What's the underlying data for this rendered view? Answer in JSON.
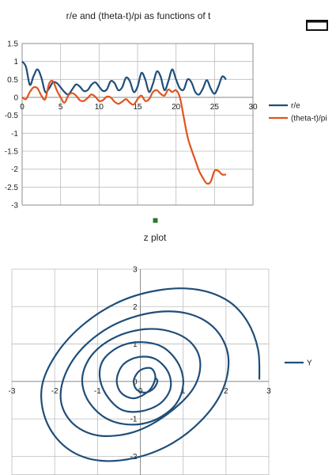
{
  "chart_data": [
    {
      "type": "line",
      "title": "r/e and (theta-t)/pi as functions of t",
      "xlim": [
        0,
        30
      ],
      "ylim": [
        -3,
        1.5
      ],
      "x_ticks": [
        0,
        5,
        10,
        15,
        20,
        25,
        30
      ],
      "y_ticks": [
        1.5,
        1,
        0.5,
        0,
        -0.5,
        -1,
        -1.5,
        -2,
        -2.5,
        -3
      ],
      "x_tick_labels": [
        "0",
        "5",
        "10",
        "15",
        "20",
        "25",
        "30"
      ],
      "y_tick_labels": [
        "1.5",
        "1",
        "0.5",
        "0",
        "-0.5",
        "-1",
        "-1.5",
        "-2",
        "-2.5",
        "-3"
      ],
      "grid": true,
      "legend_position": "right",
      "series": [
        {
          "name": "r/e",
          "color": "#1f4e79",
          "x": [
            0,
            0.5,
            1,
            1.5,
            2,
            2.5,
            3,
            3.5,
            4,
            4.5,
            5,
            5.5,
            6,
            6.5,
            7,
            7.5,
            8,
            8.5,
            9,
            9.5,
            10,
            10.5,
            11,
            11.5,
            12,
            12.5,
            13,
            13.5,
            14,
            14.5,
            15,
            15.5,
            16,
            16.5,
            17,
            17.5,
            18,
            18.5,
            19,
            19.5,
            20,
            20.5,
            21,
            21.5,
            22,
            22.5,
            23,
            23.5,
            24,
            24.5,
            25,
            25.5,
            26,
            26.5
          ],
          "y": [
            1.0,
            0.85,
            0.35,
            0.6,
            0.78,
            0.55,
            0.15,
            0.25,
            0.42,
            0.4,
            0.28,
            0.15,
            0.08,
            0.22,
            0.36,
            0.3,
            0.18,
            0.2,
            0.35,
            0.42,
            0.3,
            0.18,
            0.22,
            0.45,
            0.4,
            0.2,
            0.28,
            0.55,
            0.45,
            0.15,
            0.3,
            0.68,
            0.5,
            0.15,
            0.38,
            0.72,
            0.58,
            0.2,
            0.45,
            0.78,
            0.5,
            0.25,
            0.22,
            0.5,
            0.42,
            0.15,
            0.08,
            0.25,
            0.48,
            0.25,
            0.1,
            0.3,
            0.58,
            0.5
          ]
        },
        {
          "name": "(theta-t)/pi",
          "color": "#e2531e",
          "x": [
            0,
            0.5,
            1,
            1.5,
            2,
            2.5,
            3,
            3.5,
            4,
            4.5,
            5,
            5.5,
            6,
            6.5,
            7,
            7.5,
            8,
            8.5,
            9,
            9.5,
            10,
            10.5,
            11,
            11.5,
            12,
            12.5,
            13,
            13.5,
            14,
            14.5,
            15,
            15.5,
            16,
            16.5,
            17,
            17.5,
            18,
            18.5,
            19,
            19.5,
            20,
            20.5,
            21,
            21.5,
            22,
            22.5,
            23,
            23.5,
            24,
            24.5,
            25,
            25.5,
            26,
            26.5
          ],
          "y": [
            0.0,
            -0.05,
            0.15,
            0.28,
            0.25,
            0.05,
            -0.05,
            0.38,
            0.45,
            0.2,
            0.0,
            -0.15,
            0.05,
            0.12,
            0.05,
            -0.08,
            -0.1,
            -0.02,
            0.08,
            0.02,
            -0.1,
            -0.08,
            0.02,
            0.0,
            -0.12,
            -0.18,
            -0.12,
            -0.05,
            -0.15,
            -0.2,
            -0.05,
            0.05,
            -0.1,
            -0.05,
            0.15,
            0.2,
            0.1,
            0.05,
            0.22,
            0.15,
            0.2,
            0.0,
            -0.55,
            -1.1,
            -1.45,
            -1.75,
            -2.05,
            -2.25,
            -2.4,
            -2.35,
            -2.05,
            -2.05,
            -2.15,
            -2.15
          ]
        }
      ]
    },
    {
      "type": "line",
      "title": "z plot",
      "xlim": [
        -3,
        3
      ],
      "ylim": [
        -2.5,
        3
      ],
      "x_ticks": [
        -3,
        -2,
        -1,
        0,
        1,
        2,
        3
      ],
      "y_ticks": [
        3,
        2,
        1,
        0,
        -1,
        -2
      ],
      "x_tick_labels": [
        "-3",
        "-2",
        "-1",
        "0",
        "1",
        "2",
        "3"
      ],
      "y_tick_labels": [
        "3",
        "2",
        "1",
        "0",
        "-1",
        "-2"
      ],
      "grid": true,
      "legend_position": "right",
      "series": [
        {
          "name": "Y",
          "color": "#1f4e79",
          "x": [
            0.35,
            0.4,
            0.3,
            0.1,
            -0.1,
            -0.15,
            0.0,
            0.25,
            0.35,
            0.2,
            -0.15,
            -0.45,
            -0.55,
            -0.4,
            -0.05,
            0.35,
            0.65,
            0.7,
            0.45,
            0.0,
            -0.45,
            -0.8,
            -0.95,
            -0.85,
            -0.45,
            0.05,
            0.55,
            0.9,
            1.0,
            0.8,
            0.3,
            -0.3,
            -0.85,
            -1.25,
            -1.35,
            -1.1,
            -0.55,
            0.15,
            0.8,
            1.25,
            1.4,
            1.2,
            0.6,
            -0.15,
            -0.95,
            -1.55,
            -1.85,
            -1.75,
            -1.3,
            -0.55,
            0.35,
            1.15,
            1.75,
            2.05,
            1.95,
            1.5,
            0.75,
            -0.15,
            -1.05,
            -1.75,
            -2.2,
            -2.3,
            -1.95,
            -1.3,
            -0.45,
            0.5,
            1.35,
            2.05,
            2.5,
            2.75,
            2.78
          ],
          "y": [
            0.1,
            0.0,
            -0.2,
            -0.3,
            -0.2,
            0.05,
            0.3,
            0.35,
            0.1,
            -0.25,
            -0.45,
            -0.3,
            0.05,
            0.45,
            0.65,
            0.6,
            0.25,
            -0.2,
            -0.6,
            -0.8,
            -0.75,
            -0.35,
            0.15,
            0.6,
            0.95,
            1.05,
            0.9,
            0.45,
            -0.1,
            -0.65,
            -1.05,
            -1.15,
            -0.95,
            -0.45,
            0.15,
            0.75,
            1.2,
            1.4,
            1.3,
            0.95,
            0.4,
            -0.25,
            -0.9,
            -1.35,
            -1.45,
            -1.15,
            -0.55,
            0.2,
            0.95,
            1.55,
            1.85,
            1.8,
            1.4,
            0.7,
            -0.15,
            -0.95,
            -1.65,
            -2.05,
            -2.1,
            -1.75,
            -1.05,
            -0.15,
            0.75,
            1.55,
            2.15,
            2.45,
            2.45,
            2.15,
            1.6,
            0.85,
            0.05
          ]
        }
      ]
    }
  ]
}
